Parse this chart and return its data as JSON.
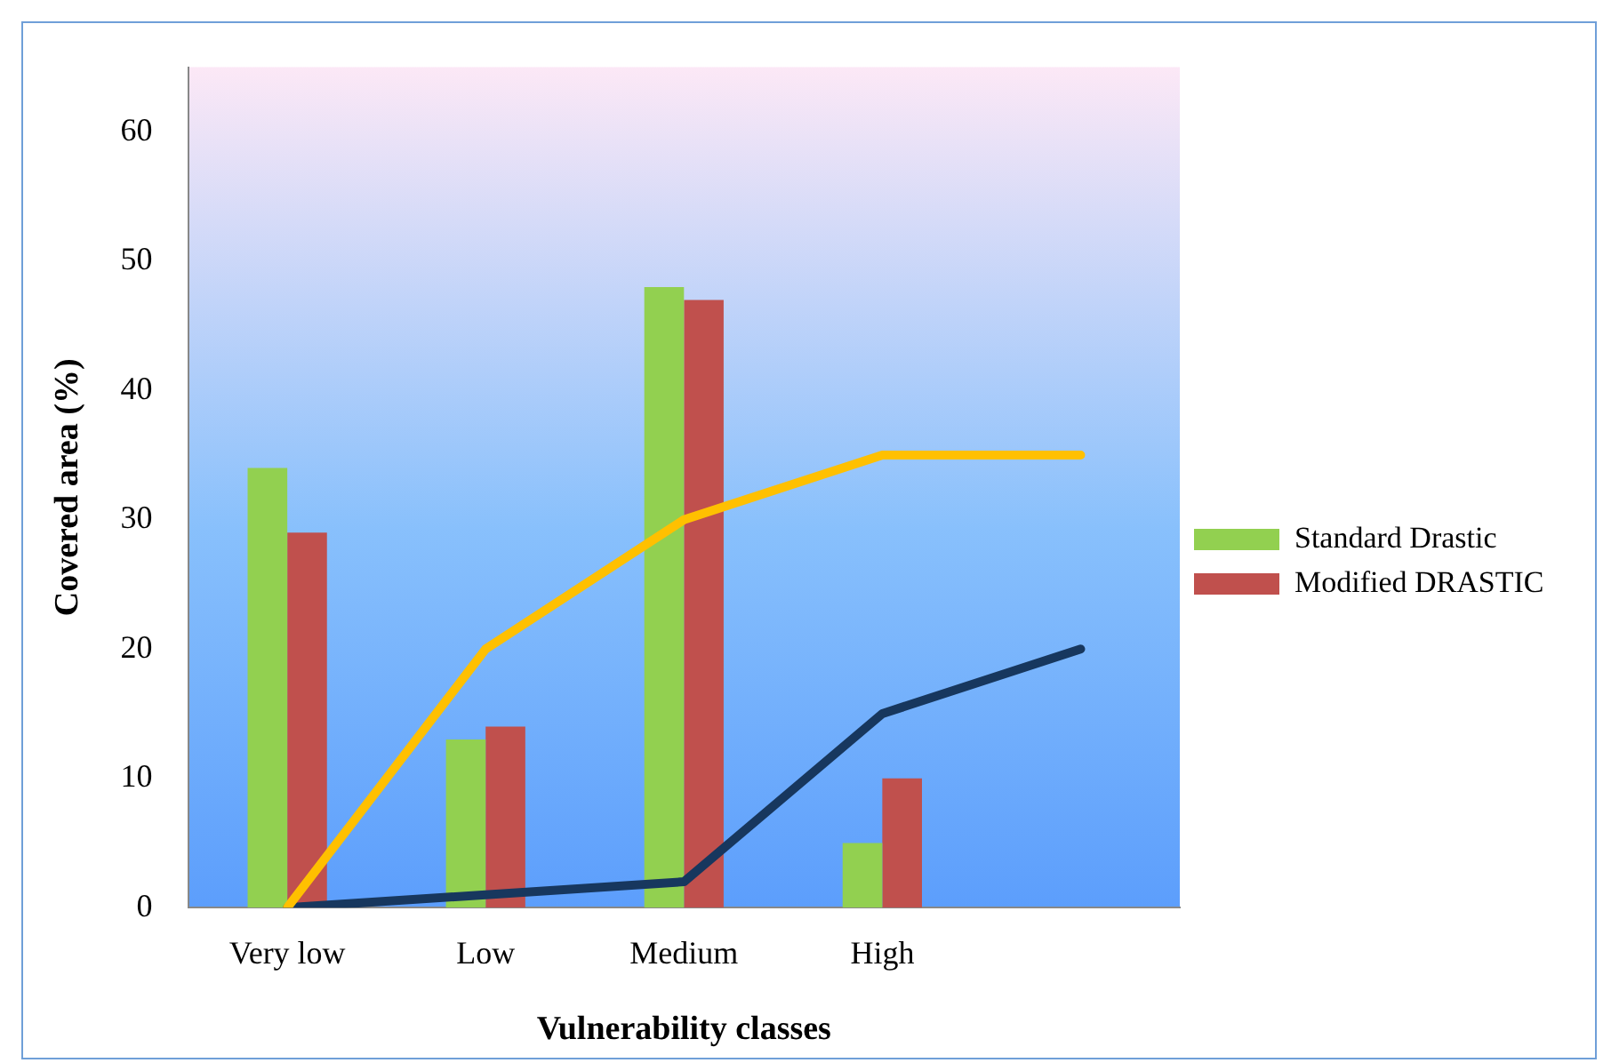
{
  "chart_data": {
    "type": "bar",
    "xlabel": "Vulnerability classes",
    "ylabel": "Covered area (%)",
    "categories": [
      "Very low",
      "Low",
      "Medium",
      "High",
      null
    ],
    "series": [
      {
        "name": "Standard Drastic",
        "color": "#92d050",
        "values": [
          34,
          13,
          48,
          5,
          null
        ]
      },
      {
        "name": "Modified DRASTIC",
        "color": "#c0504d",
        "values": [
          29,
          14,
          47,
          10,
          null
        ]
      },
      {
        "type": "line",
        "color": "#ffc000",
        "values": [
          0,
          20,
          30,
          35,
          35
        ]
      },
      {
        "type": "line",
        "color": "#17375e",
        "values": [
          0,
          1,
          2,
          15,
          20
        ]
      }
    ],
    "ylim": [
      0,
      65
    ],
    "yticks": [
      0,
      10,
      20,
      30,
      40,
      50,
      60
    ],
    "grid": false,
    "legend": "right",
    "marker": "none",
    "line_style": "solid"
  }
}
